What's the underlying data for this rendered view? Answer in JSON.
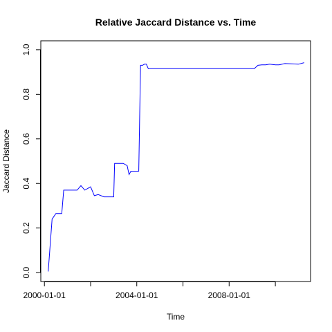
{
  "chart_data": {
    "type": "line",
    "title": "Relative Jaccard Distance vs. Time",
    "xlabel": "Time",
    "ylabel": "Jaccard Distance",
    "xlim": [
      "1999-11-05",
      "2011-07-12"
    ],
    "ylim": [
      -0.04,
      1.04
    ],
    "x_ticks": [
      "2000-01-01",
      "2002-01-01",
      "2004-01-01",
      "2006-01-01",
      "2008-01-01",
      "2010-01-01"
    ],
    "x_tick_labels": [
      "2000-01-01",
      "",
      "2004-01-01",
      "",
      "2008-01-01",
      ""
    ],
    "y_ticks": [
      0.0,
      0.2,
      0.4,
      0.6,
      0.8,
      1.0
    ],
    "y_tick_labels": [
      "0.0",
      "0.2",
      "0.4",
      "0.6",
      "0.8",
      "1.0"
    ],
    "grid": false,
    "series": [
      {
        "color": "#0000ff",
        "x": [
          "2000-03-01",
          "2000-05-01",
          "2000-07-01",
          "2000-10-01",
          "2000-11-01",
          "2001-04-01",
          "2001-06-01",
          "2001-07-01",
          "2001-08-01",
          "2001-10-01",
          "2002-01-01",
          "2002-03-01",
          "2002-05-01",
          "2002-08-01",
          "2003-01-01",
          "2003-01-15",
          "2003-05-01",
          "2003-06-01",
          "2003-08-01",
          "2003-09-01",
          "2003-10-01",
          "2004-02-01",
          "2004-03-01",
          "2004-04-01",
          "2004-05-01",
          "2004-06-01",
          "2004-07-01",
          "2004-09-01",
          "2005-01-01",
          "2006-06-01",
          "2007-06-01",
          "2008-06-01",
          "2009-01-01",
          "2009-02-01",
          "2009-04-01",
          "2009-06-01",
          "2009-08-01",
          "2009-10-01",
          "2010-01-01",
          "2010-03-01",
          "2010-06-01",
          "2011-01-01",
          "2011-04-01"
        ],
        "y": [
          0.005,
          0.24,
          0.265,
          0.265,
          0.37,
          0.37,
          0.37,
          0.38,
          0.39,
          0.37,
          0.385,
          0.345,
          0.35,
          0.34,
          0.34,
          0.49,
          0.49,
          0.49,
          0.48,
          0.44,
          0.455,
          0.455,
          0.93,
          0.93,
          0.935,
          0.935,
          0.915,
          0.915,
          0.915,
          0.915,
          0.915,
          0.915,
          0.915,
          0.915,
          0.93,
          0.932,
          0.932,
          0.935,
          0.932,
          0.932,
          0.938,
          0.935,
          0.942
        ]
      }
    ]
  }
}
